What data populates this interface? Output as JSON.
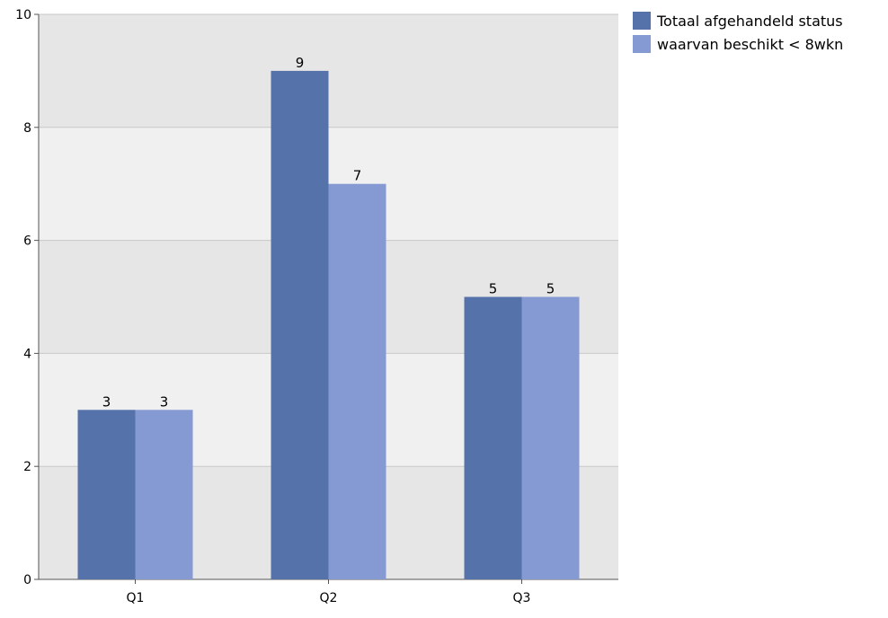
{
  "chart_data": {
    "type": "bar",
    "categories": [
      "Q1",
      "Q2",
      "Q3"
    ],
    "series": [
      {
        "name": "Totaal afgehandeld status",
        "values": [
          3,
          9,
          5
        ],
        "color": "#5573aa"
      },
      {
        "name": "waarvan beschikt < 8wkn",
        "values": [
          3,
          7,
          5
        ],
        "color": "#8599d3"
      }
    ],
    "ylim": [
      0,
      10
    ],
    "yticks": [
      0,
      2,
      4,
      6,
      8,
      10
    ],
    "grid": true,
    "legend_position": "right",
    "data_labels": true,
    "band_colors": [
      "#e6e6e6",
      "#f0f0f0"
    ]
  }
}
